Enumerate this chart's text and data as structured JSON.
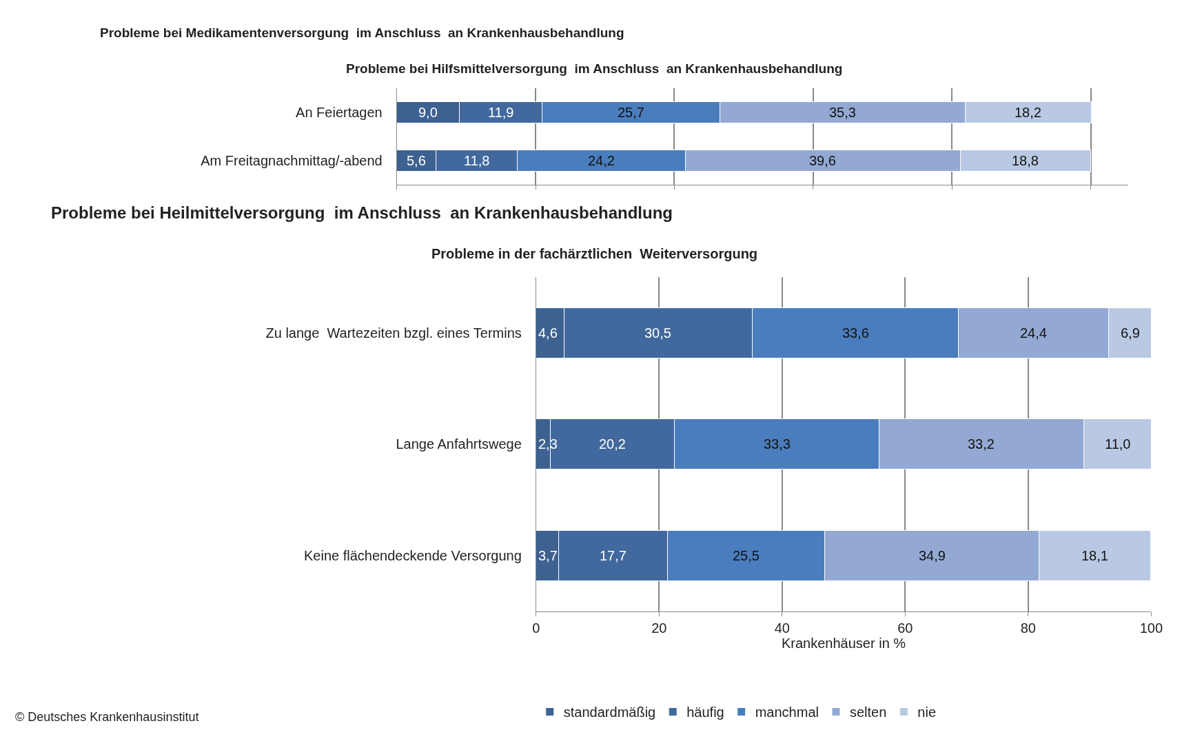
{
  "chart_data": [
    {
      "type": "other",
      "title": "Probleme bei Medikamentenversorgung  im Anschluss  an Krankenhausbehandlung"
    },
    {
      "type": "bar",
      "title": "Probleme bei Hilfsmittelversorgung  im Anschluss  an Krankenhausbehandlung",
      "orientation": "horizontal",
      "stacked": true,
      "grid": "x",
      "tick_labels": "y",
      "categories": [
        "An Feiertagen",
        "Am Freitagnachmittag/-abend"
      ],
      "series": [
        {
          "color": "#3d6190",
          "values": [
            9.0,
            5.6
          ],
          "value_labels": [
            "9,0",
            "5,6"
          ]
        },
        {
          "color": "#41699e",
          "values": [
            11.9,
            11.8
          ],
          "value_labels": [
            "11,9",
            "11,8"
          ]
        },
        {
          "color": "#4a7dbd",
          "values": [
            25.7,
            24.2
          ],
          "value_labels": [
            "25,7",
            "24,2"
          ]
        },
        {
          "color": "#93a9d3",
          "values": [
            35.3,
            39.6
          ],
          "value_labels": [
            "35,3",
            "39,6"
          ]
        },
        {
          "color": "#bac9e3",
          "values": [
            18.2,
            18.8
          ],
          "value_labels": [
            "18,2",
            "18,8"
          ]
        }
      ]
    },
    {
      "type": "other",
      "title": "Probleme bei Heilmittelversorgung  im Anschluss  an Krankenhausbehandlung"
    },
    {
      "type": "bar",
      "title": "Probleme in der fachärztlichen  Weiterversorgung",
      "orientation": "horizontal",
      "stacked": true,
      "grid": "x",
      "legend": "bottom",
      "xlabel": "Krankenhäuser in %",
      "xlim": [
        0,
        100
      ],
      "xticks": [
        0,
        20,
        40,
        60,
        80,
        100
      ],
      "categories": [
        "Zu lange  Wartezeiten bzgl. eines Termins",
        "Lange Anfahrtswege",
        "Keine flächendeckende Versorgung"
      ],
      "series": [
        {
          "name": "standardmäßig",
          "color": "#3d6190",
          "values": [
            4.6,
            2.3,
            3.7
          ],
          "value_labels": [
            "4,6",
            "2,3",
            "3,7"
          ]
        },
        {
          "name": "häufig",
          "color": "#41699e",
          "values": [
            30.5,
            20.2,
            17.7
          ],
          "value_labels": [
            "30,5",
            "20,2",
            "17,7"
          ]
        },
        {
          "name": "manchmal",
          "color": "#4a7dbd",
          "values": [
            33.6,
            33.3,
            25.5
          ],
          "value_labels": [
            "33,6",
            "33,3",
            "25,5"
          ]
        },
        {
          "name": "selten",
          "color": "#93a9d3",
          "values": [
            24.4,
            33.2,
            34.9
          ],
          "value_labels": [
            "24,4",
            "33,2",
            "34,9"
          ]
        },
        {
          "name": "nie",
          "color": "#bac9e3",
          "values": [
            6.9,
            11.0,
            18.1
          ],
          "value_labels": [
            "6,9",
            "11,0",
            "18,1"
          ]
        }
      ],
      "annotations": [
        "© Deutsches Krankenhausinstitut"
      ]
    }
  ]
}
